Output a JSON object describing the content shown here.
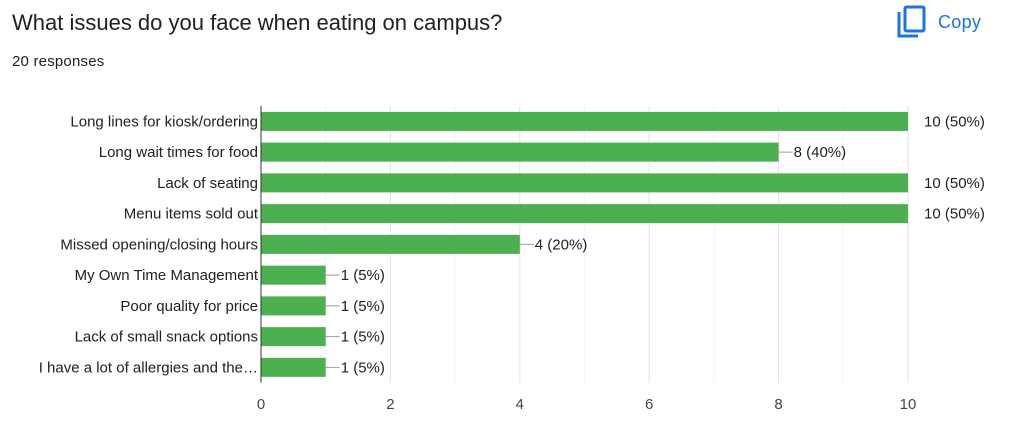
{
  "question": {
    "title": "What issues do you face when eating on campus?",
    "responses": "20 responses"
  },
  "copy_button": {
    "label": "Copy",
    "icon": "copy-icon",
    "color": "#1a73e8"
  },
  "chart_data": {
    "type": "bar",
    "orientation": "horizontal",
    "categories": [
      "Long lines for kiosk/ordering",
      "Long wait times for food",
      "Lack of seating",
      "Menu items sold out",
      "Missed opening/closing hours",
      "My Own Time Management",
      "Poor quality for price",
      "Lack of small snack options",
      "I have a lot of allergies and the…"
    ],
    "values": [
      10,
      8,
      10,
      10,
      4,
      1,
      1,
      1,
      1
    ],
    "data_labels": [
      "10 (50%)",
      "8 (40%)",
      "10 (50%)",
      "10 (50%)",
      "4 (20%)",
      "1 (5%)",
      "1 (5%)",
      "1 (5%)",
      "1 (5%)"
    ],
    "xlim": [
      0,
      10
    ],
    "x_ticks": [
      0,
      2,
      4,
      6,
      8,
      10
    ],
    "grid": true,
    "bar_color": "#4caf50"
  }
}
